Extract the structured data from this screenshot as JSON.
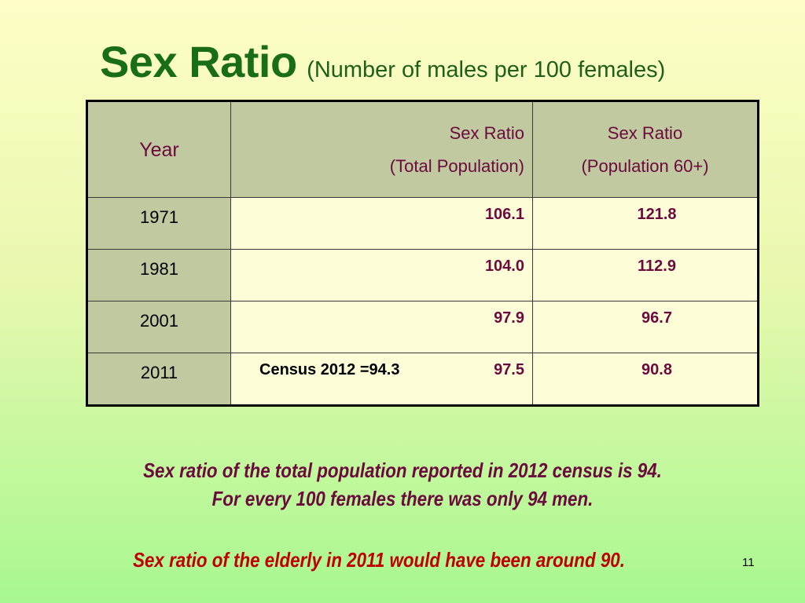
{
  "title": {
    "main": "Sex Ratio",
    "subtitle": "(Number of males per 100 females)"
  },
  "table": {
    "headers": {
      "year": "Year",
      "total_line1": "Sex Ratio",
      "total_line2": "(Total Population)",
      "elderly_line1": "Sex Ratio",
      "elderly_line2": "(Population 60+)"
    },
    "rows": [
      {
        "year": "1971",
        "note": "",
        "total": "106.1",
        "elderly": "121.8"
      },
      {
        "year": "1981",
        "note": "",
        "total": "104.0",
        "elderly": "112.9"
      },
      {
        "year": "2001",
        "note": "",
        "total": "97.9",
        "elderly": "96.7"
      },
      {
        "year": "2011",
        "note": "Census 2012 =94.3",
        "total": "97.5",
        "elderly": "90.8"
      }
    ]
  },
  "captions": {
    "line1": "Sex ratio of the total population reported in 2012 census is 94.",
    "line2": "For every 100 females there was only 94 men.",
    "line3": "Sex ratio of the elderly in 2011 would have been around 90."
  },
  "slide_number": "11"
}
